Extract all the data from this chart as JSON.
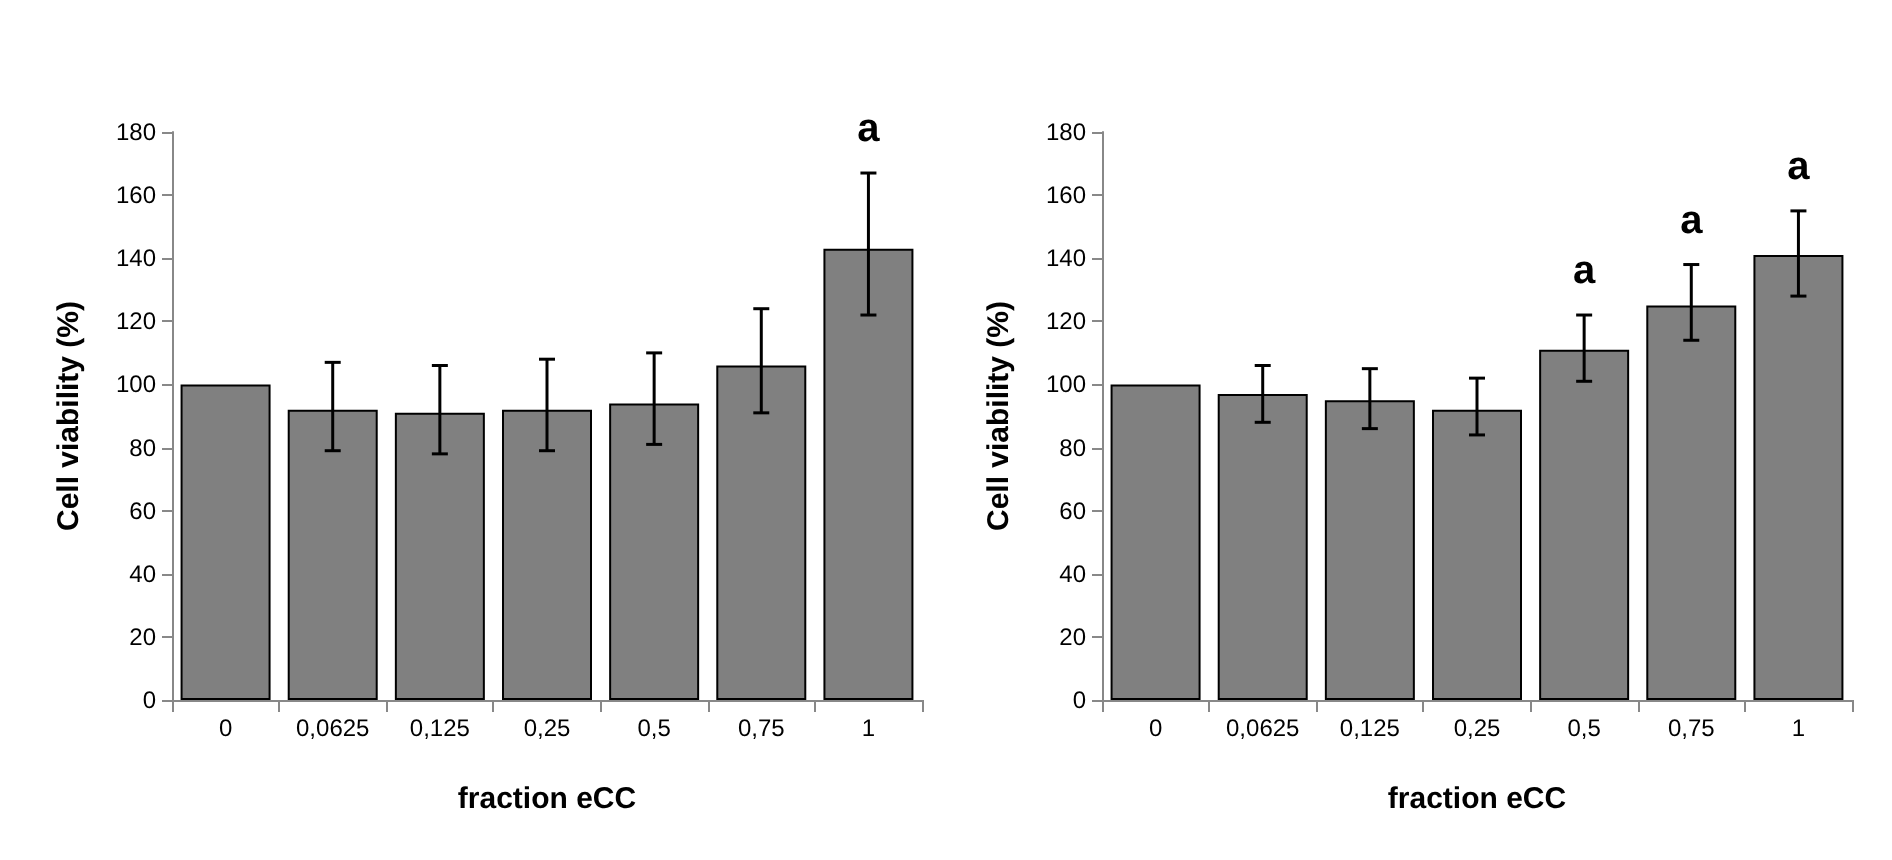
{
  "chart_data": [
    {
      "type": "bar",
      "xlabel": "fraction eCC",
      "ylabel": "Cell viability (%)",
      "categories": [
        "0",
        "0,0625",
        "0,125",
        "0,25",
        "0,5",
        "0,75",
        "1"
      ],
      "series": [
        {
          "color": "#808080",
          "values": [
            100,
            92,
            91,
            92,
            94,
            106,
            143
          ],
          "errors": [
            null,
            [
              79,
              107
            ],
            [
              78,
              106
            ],
            [
              79,
              108
            ],
            [
              81,
              110
            ],
            [
              91,
              124
            ],
            [
              122,
              167
            ]
          ]
        }
      ],
      "ylim": [
        0,
        180
      ],
      "yticks": [
        0,
        20,
        40,
        60,
        80,
        100,
        120,
        140,
        160,
        180
      ],
      "grid": false,
      "annotations": [
        {
          "text": "a",
          "x": "1",
          "y": 167
        }
      ]
    },
    {
      "type": "bar",
      "xlabel": "fraction eCC",
      "ylabel": "Cell viability (%)",
      "categories": [
        "0",
        "0,0625",
        "0,125",
        "0,25",
        "0,5",
        "0,75",
        "1"
      ],
      "series": [
        {
          "color": "#808080",
          "values": [
            100,
            97,
            95,
            92,
            111,
            125,
            141
          ],
          "errors": [
            null,
            [
              88,
              106
            ],
            [
              86,
              105
            ],
            [
              84,
              102
            ],
            [
              101,
              122
            ],
            [
              114,
              138
            ],
            [
              128,
              155
            ]
          ]
        }
      ],
      "ylim": [
        0,
        180
      ],
      "yticks": [
        0,
        20,
        40,
        60,
        80,
        100,
        120,
        140,
        160,
        180
      ],
      "grid": false,
      "annotations": [
        {
          "text": "a",
          "x": "0,5",
          "y": 122
        },
        {
          "text": "a",
          "x": "0,75",
          "y": 138
        },
        {
          "text": "a",
          "x": "1",
          "y": 155
        }
      ]
    }
  ]
}
